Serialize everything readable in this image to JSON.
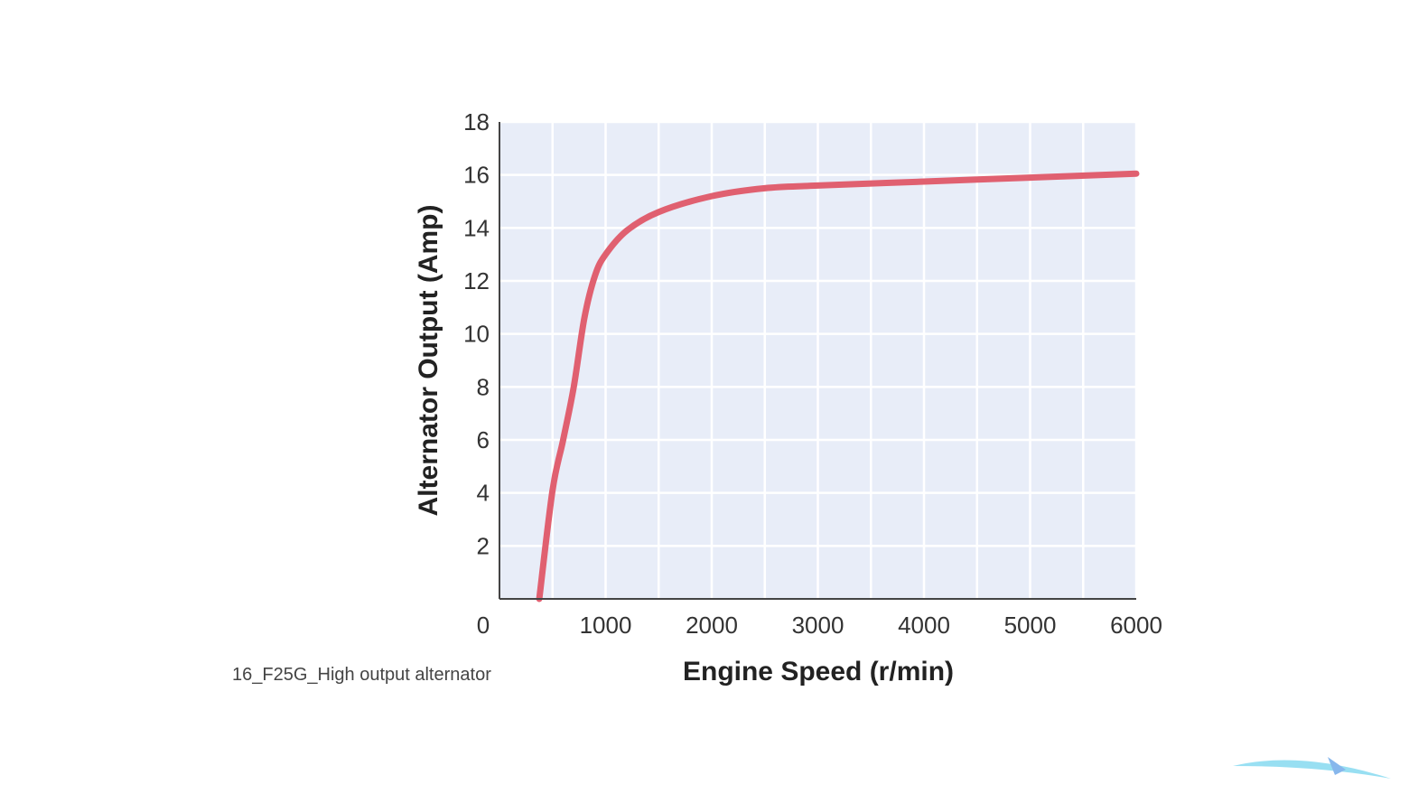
{
  "chart_data": {
    "type": "line",
    "title": "",
    "xlabel": "Engine Speed (r/min)",
    "ylabel": "Alternator Output (Amp)",
    "xlim": [
      0,
      6000
    ],
    "ylim": [
      0,
      18
    ],
    "x_ticks": [
      "0",
      "1000",
      "2000",
      "3000",
      "4000",
      "5000",
      "6000"
    ],
    "y_ticks": [
      "2",
      "4",
      "6",
      "8",
      "10",
      "12",
      "14",
      "16",
      "18"
    ],
    "grid": true,
    "grid_x_step": 500,
    "grid_y_step": 2,
    "background_color": "#e8edf8",
    "line_color": "#e06070",
    "series": [
      {
        "x": [
          375,
          500,
          600,
          700,
          800,
          900,
          1000,
          1200,
          1500,
          2000,
          2500,
          3000,
          4000,
          5000,
          6000
        ],
        "y": [
          0,
          4.1,
          6.0,
          8.0,
          10.6,
          12.2,
          13.0,
          13.9,
          14.6,
          15.2,
          15.5,
          15.6,
          15.75,
          15.9,
          16.05
        ]
      }
    ]
  },
  "caption": "16_F25G_High output alternator"
}
